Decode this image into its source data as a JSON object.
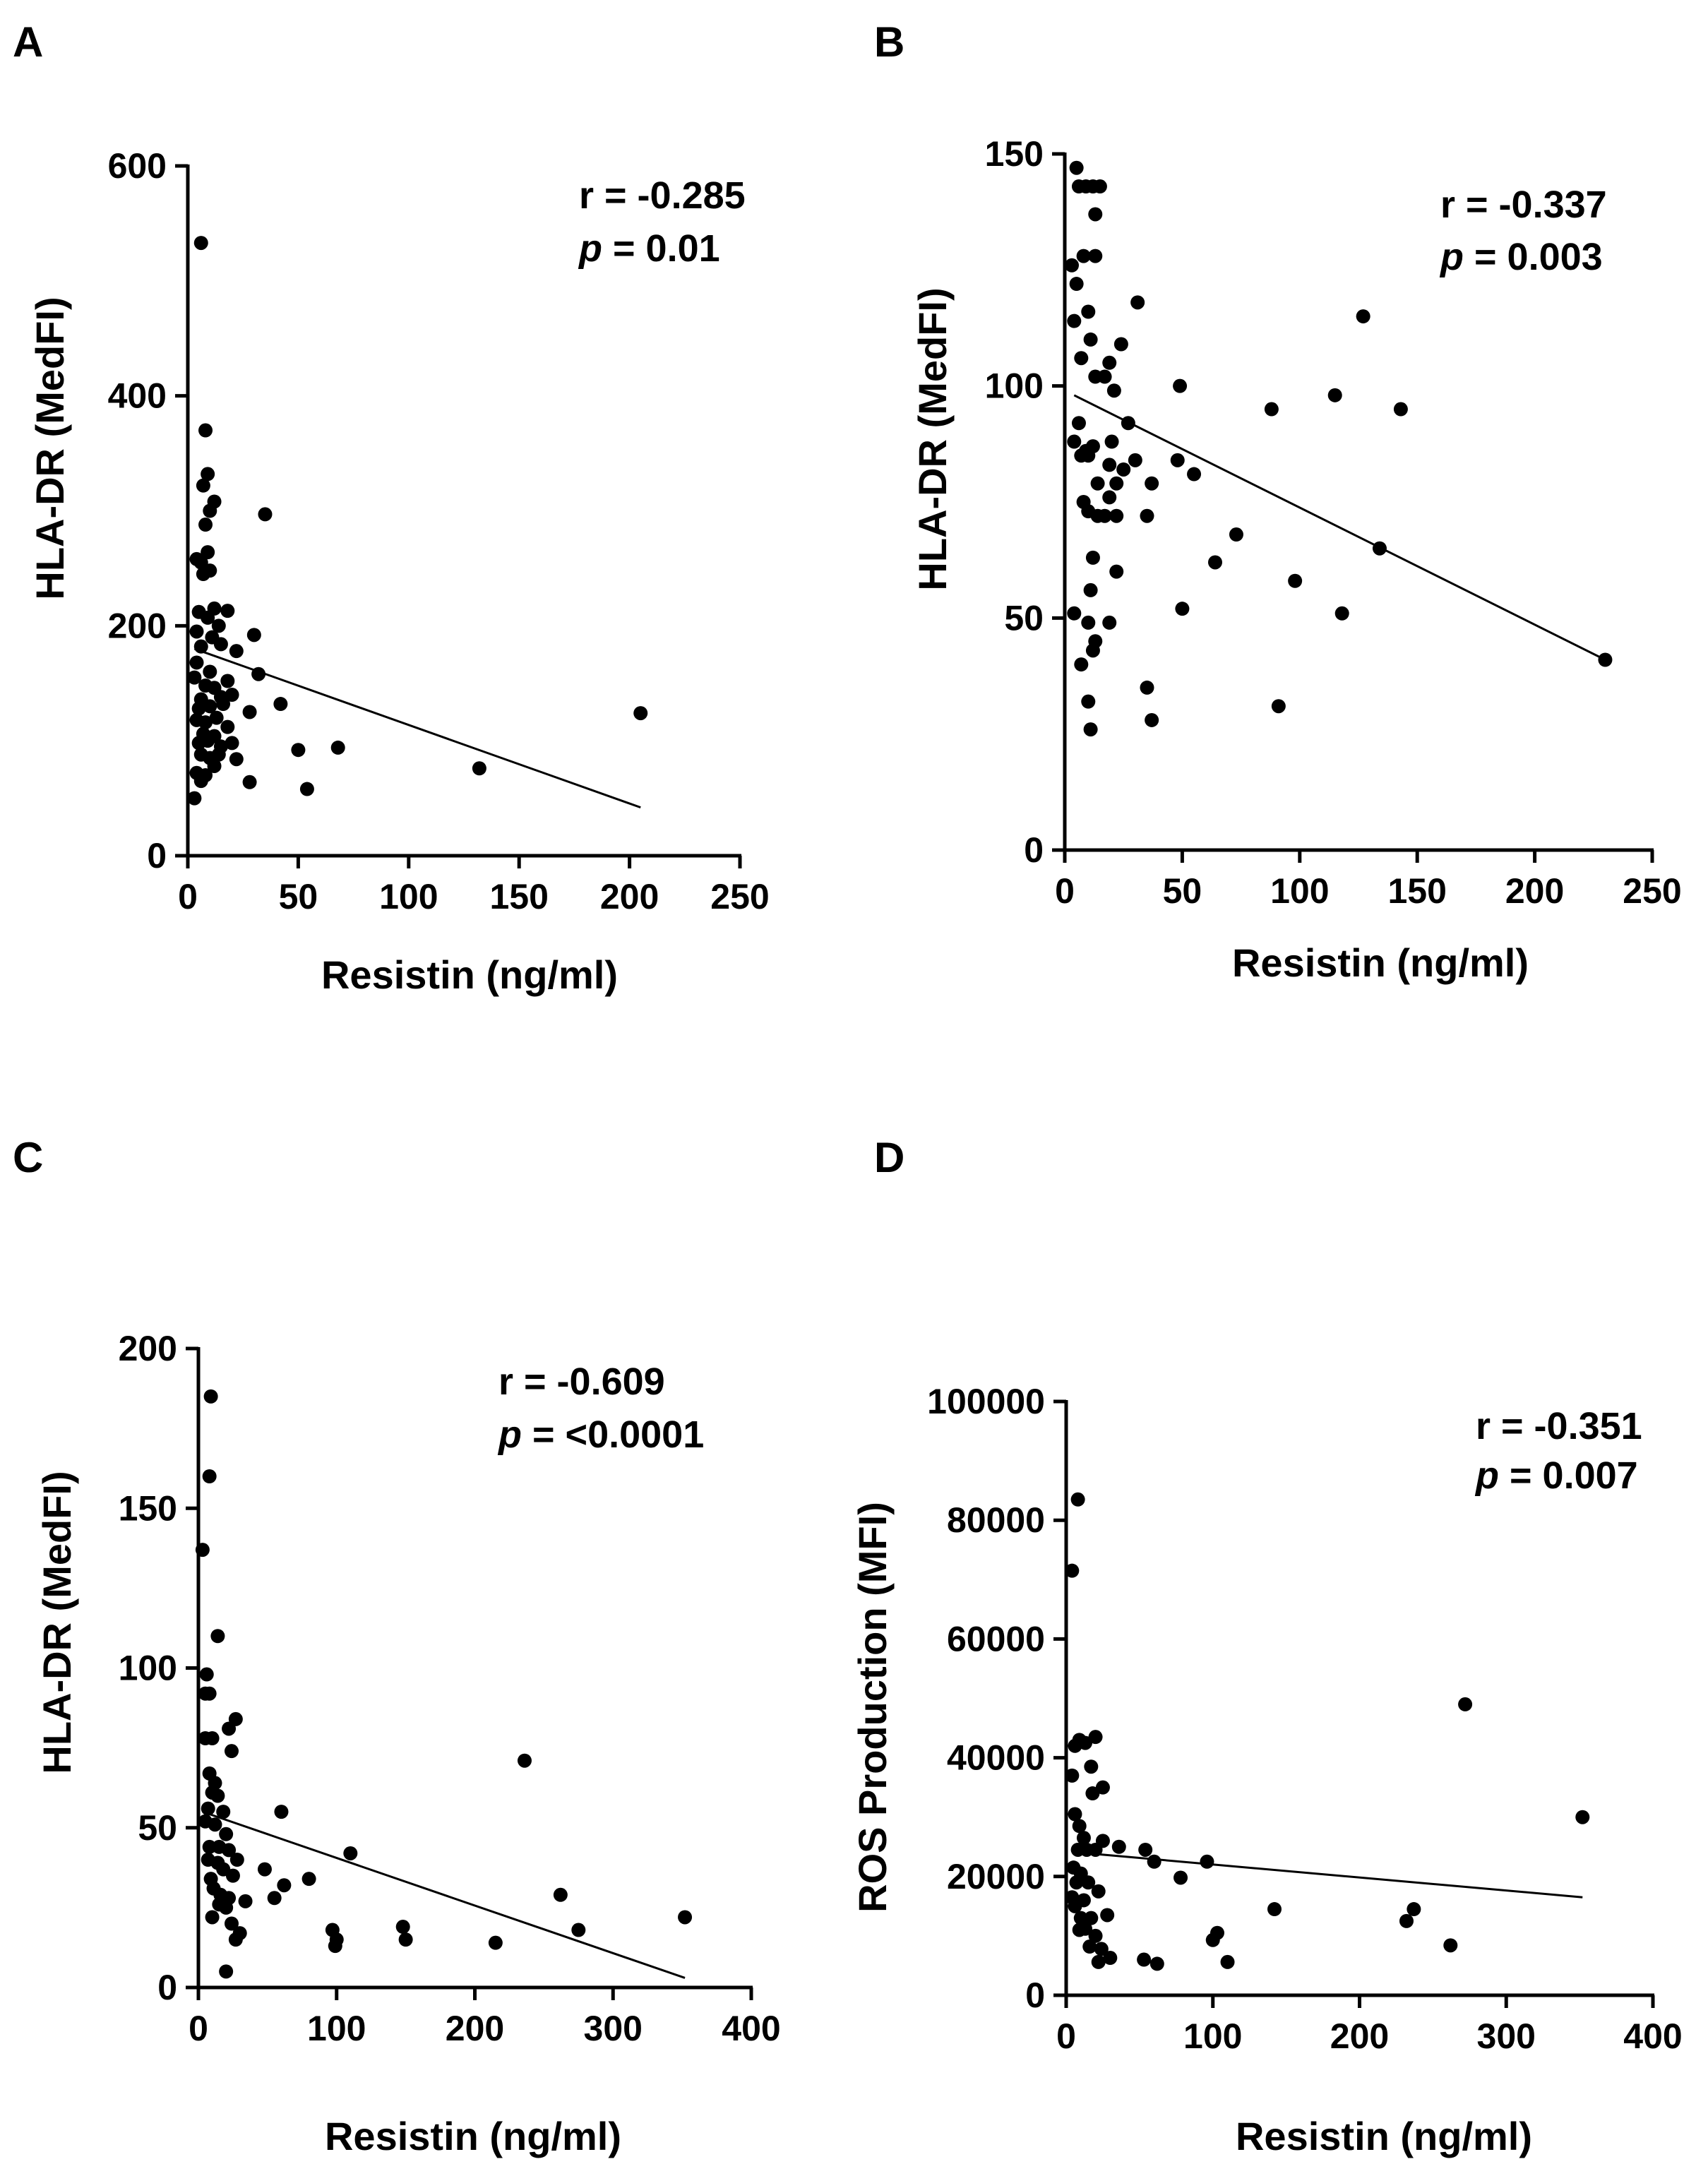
{
  "chart_data": [
    {
      "type": "scatter",
      "panel": "A",
      "xlabel": "Resistin (ng/ml)",
      "ylabel": "HLA-DR (MedFI)",
      "xlim": [
        0,
        250
      ],
      "ylim": [
        0,
        600
      ],
      "xticks": [
        0,
        50,
        100,
        150,
        200,
        250
      ],
      "yticks": [
        0,
        200,
        400,
        600
      ],
      "annotation": {
        "r_text": "r = -0.285",
        "p_symbol": "p",
        "p_text": " = 0.01"
      },
      "fit_line": [
        [
          3,
          180
        ],
        [
          205,
          42
        ]
      ],
      "points": [
        [
          6,
          533
        ],
        [
          8,
          370
        ],
        [
          9,
          332
        ],
        [
          7,
          322
        ],
        [
          35,
          297
        ],
        [
          10,
          300
        ],
        [
          12,
          308
        ],
        [
          8,
          288
        ],
        [
          4,
          258
        ],
        [
          6,
          255
        ],
        [
          9,
          264
        ],
        [
          10,
          248
        ],
        [
          7,
          245
        ],
        [
          5,
          212
        ],
        [
          9,
          207
        ],
        [
          12,
          215
        ],
        [
          18,
          213
        ],
        [
          14,
          200
        ],
        [
          4,
          195
        ],
        [
          11,
          190
        ],
        [
          22,
          178
        ],
        [
          30,
          192
        ],
        [
          6,
          182
        ],
        [
          15,
          184
        ],
        [
          4,
          168
        ],
        [
          10,
          160
        ],
        [
          18,
          152
        ],
        [
          32,
          158
        ],
        [
          3,
          155
        ],
        [
          8,
          148
        ],
        [
          12,
          146
        ],
        [
          6,
          136
        ],
        [
          15,
          138
        ],
        [
          20,
          140
        ],
        [
          5,
          128
        ],
        [
          10,
          130
        ],
        [
          16,
          132
        ],
        [
          42,
          132
        ],
        [
          28,
          125
        ],
        [
          4,
          118
        ],
        [
          8,
          116
        ],
        [
          13,
          120
        ],
        [
          18,
          112
        ],
        [
          7,
          106
        ],
        [
          12,
          104
        ],
        [
          5,
          98
        ],
        [
          9,
          100
        ],
        [
          15,
          95
        ],
        [
          20,
          98
        ],
        [
          6,
          88
        ],
        [
          10,
          85
        ],
        [
          14,
          88
        ],
        [
          22,
          84
        ],
        [
          4,
          72
        ],
        [
          8,
          70
        ],
        [
          12,
          78
        ],
        [
          6,
          65
        ],
        [
          50,
          92
        ],
        [
          68,
          94
        ],
        [
          132,
          76
        ],
        [
          205,
          124
        ],
        [
          28,
          64
        ],
        [
          54,
          58
        ],
        [
          3,
          50
        ]
      ]
    },
    {
      "type": "scatter",
      "panel": "B",
      "xlabel": "Resistin (ng/ml)",
      "ylabel": "HLA-DR (MedFI)",
      "xlim": [
        0,
        250
      ],
      "ylim": [
        0,
        150
      ],
      "xticks": [
        0,
        50,
        100,
        150,
        200,
        250
      ],
      "yticks": [
        0,
        50,
        100,
        150
      ],
      "annotation": {
        "r_text": "r = -0.337",
        "p_symbol": "p",
        "p_text": " = 0.003"
      },
      "fit_line": [
        [
          4,
          98
        ],
        [
          230,
          41
        ]
      ],
      "points": [
        [
          5,
          147
        ],
        [
          6,
          143
        ],
        [
          9,
          143
        ],
        [
          12,
          143
        ],
        [
          15,
          143
        ],
        [
          13,
          137
        ],
        [
          8,
          128
        ],
        [
          13,
          128
        ],
        [
          3,
          126
        ],
        [
          5,
          122
        ],
        [
          31,
          118
        ],
        [
          10,
          116
        ],
        [
          4,
          114
        ],
        [
          127,
          115
        ],
        [
          11,
          110
        ],
        [
          24,
          109
        ],
        [
          7,
          106
        ],
        [
          19,
          105
        ],
        [
          13,
          102
        ],
        [
          17,
          102
        ],
        [
          21,
          99
        ],
        [
          49,
          100
        ],
        [
          115,
          98
        ],
        [
          88,
          95
        ],
        [
          143,
          95
        ],
        [
          27,
          92
        ],
        [
          6,
          92
        ],
        [
          4,
          88
        ],
        [
          9,
          86
        ],
        [
          12,
          87
        ],
        [
          20,
          88
        ],
        [
          7,
          85
        ],
        [
          10,
          85
        ],
        [
          30,
          84
        ],
        [
          48,
          84
        ],
        [
          19,
          83
        ],
        [
          25,
          82
        ],
        [
          55,
          81
        ],
        [
          14,
          79
        ],
        [
          22,
          79
        ],
        [
          37,
          79
        ],
        [
          19,
          76
        ],
        [
          8,
          75
        ],
        [
          10,
          73
        ],
        [
          14,
          72
        ],
        [
          17,
          72
        ],
        [
          22,
          72
        ],
        [
          35,
          72
        ],
        [
          73,
          68
        ],
        [
          134,
          65
        ],
        [
          12,
          63
        ],
        [
          64,
          62
        ],
        [
          22,
          60
        ],
        [
          98,
          58
        ],
        [
          11,
          56
        ],
        [
          4,
          51
        ],
        [
          50,
          52
        ],
        [
          118,
          51
        ],
        [
          10,
          49
        ],
        [
          19,
          49
        ],
        [
          13,
          45
        ],
        [
          12,
          43
        ],
        [
          7,
          40
        ],
        [
          230,
          41
        ],
        [
          35,
          35
        ],
        [
          10,
          32
        ],
        [
          91,
          31
        ],
        [
          37,
          28
        ],
        [
          11,
          26
        ]
      ]
    },
    {
      "type": "scatter",
      "panel": "C",
      "xlabel": "Resistin (ng/ml)",
      "ylabel": "HLA-DR (MedFI)",
      "xlim": [
        0,
        400
      ],
      "ylim": [
        0,
        200
      ],
      "xticks": [
        0,
        100,
        200,
        300,
        400
      ],
      "yticks": [
        0,
        50,
        100,
        150,
        200
      ],
      "annotation": {
        "r_text": "r = -0.609",
        "p_symbol": "p",
        "p_text": " = <0.0001"
      },
      "fit_line": [
        [
          3,
          55
        ],
        [
          352,
          3
        ]
      ],
      "points": [
        [
          9,
          185
        ],
        [
          8,
          160
        ],
        [
          3,
          137
        ],
        [
          14,
          110
        ],
        [
          6,
          98
        ],
        [
          5,
          92
        ],
        [
          8,
          92
        ],
        [
          27,
          84
        ],
        [
          5,
          78
        ],
        [
          10,
          78
        ],
        [
          22,
          81
        ],
        [
          24,
          74
        ],
        [
          236,
          71
        ],
        [
          8,
          67
        ],
        [
          12,
          64
        ],
        [
          14,
          60
        ],
        [
          10,
          61
        ],
        [
          7,
          56
        ],
        [
          18,
          55
        ],
        [
          60,
          55
        ],
        [
          5,
          52
        ],
        [
          12,
          51
        ],
        [
          20,
          48
        ],
        [
          8,
          44
        ],
        [
          15,
          44
        ],
        [
          22,
          43
        ],
        [
          110,
          42
        ],
        [
          7,
          40
        ],
        [
          14,
          39
        ],
        [
          28,
          40
        ],
        [
          18,
          37
        ],
        [
          48,
          37
        ],
        [
          9,
          34
        ],
        [
          25,
          35
        ],
        [
          80,
          34
        ],
        [
          11,
          31
        ],
        [
          16,
          29
        ],
        [
          22,
          28
        ],
        [
          34,
          27
        ],
        [
          62,
          32
        ],
        [
          55,
          28
        ],
        [
          262,
          29
        ],
        [
          15,
          26
        ],
        [
          20,
          25
        ],
        [
          10,
          22
        ],
        [
          24,
          20
        ],
        [
          30,
          17
        ],
        [
          97,
          18
        ],
        [
          148,
          19
        ],
        [
          275,
          18
        ],
        [
          352,
          22
        ],
        [
          27,
          15
        ],
        [
          100,
          15
        ],
        [
          150,
          15
        ],
        [
          215,
          14
        ],
        [
          99,
          13
        ],
        [
          20,
          5
        ]
      ]
    },
    {
      "type": "scatter",
      "panel": "D",
      "xlabel": "Resistin (ng/ml)",
      "ylabel": "ROS Production (MFI)",
      "xlim": [
        0,
        400
      ],
      "ylim": [
        0,
        100000
      ],
      "xticks": [
        0,
        100,
        200,
        300,
        400
      ],
      "yticks": [
        0,
        20000,
        40000,
        60000,
        80000,
        100000
      ],
      "annotation": {
        "r_text": "r = -0.351",
        "p_symbol": "p",
        "p_text": " = 0.007"
      },
      "fit_line": [
        [
          10,
          24000
        ],
        [
          352,
          16500
        ]
      ],
      "points": [
        [
          8,
          83500
        ],
        [
          4,
          71500
        ],
        [
          9,
          43000
        ],
        [
          20,
          43500
        ],
        [
          13,
          42500
        ],
        [
          6,
          42000
        ],
        [
          17,
          38500
        ],
        [
          4,
          37000
        ],
        [
          25,
          35000
        ],
        [
          18,
          34000
        ],
        [
          272,
          49000
        ],
        [
          352,
          30000
        ],
        [
          6,
          30500
        ],
        [
          9,
          28500
        ],
        [
          12,
          26500
        ],
        [
          25,
          26000
        ],
        [
          36,
          25000
        ],
        [
          8,
          24500
        ],
        [
          14,
          24500
        ],
        [
          20,
          24500
        ],
        [
          54,
          24500
        ],
        [
          60,
          22500
        ],
        [
          96,
          22500
        ],
        [
          5,
          21500
        ],
        [
          10,
          20500
        ],
        [
          78,
          19800
        ],
        [
          7,
          19000
        ],
        [
          15,
          19000
        ],
        [
          22,
          17500
        ],
        [
          4,
          16500
        ],
        [
          12,
          16000
        ],
        [
          6,
          15000
        ],
        [
          142,
          14500
        ],
        [
          237,
          14500
        ],
        [
          10,
          13000
        ],
        [
          17,
          13000
        ],
        [
          28,
          13500
        ],
        [
          232,
          12500
        ],
        [
          9,
          11000
        ],
        [
          13,
          11200
        ],
        [
          103,
          10500
        ],
        [
          20,
          10000
        ],
        [
          100,
          9300
        ],
        [
          16,
          8200
        ],
        [
          262,
          8400
        ],
        [
          24,
          7800
        ],
        [
          30,
          6300
        ],
        [
          53,
          6000
        ],
        [
          22,
          5600
        ],
        [
          110,
          5600
        ],
        [
          62,
          5300
        ]
      ]
    }
  ]
}
